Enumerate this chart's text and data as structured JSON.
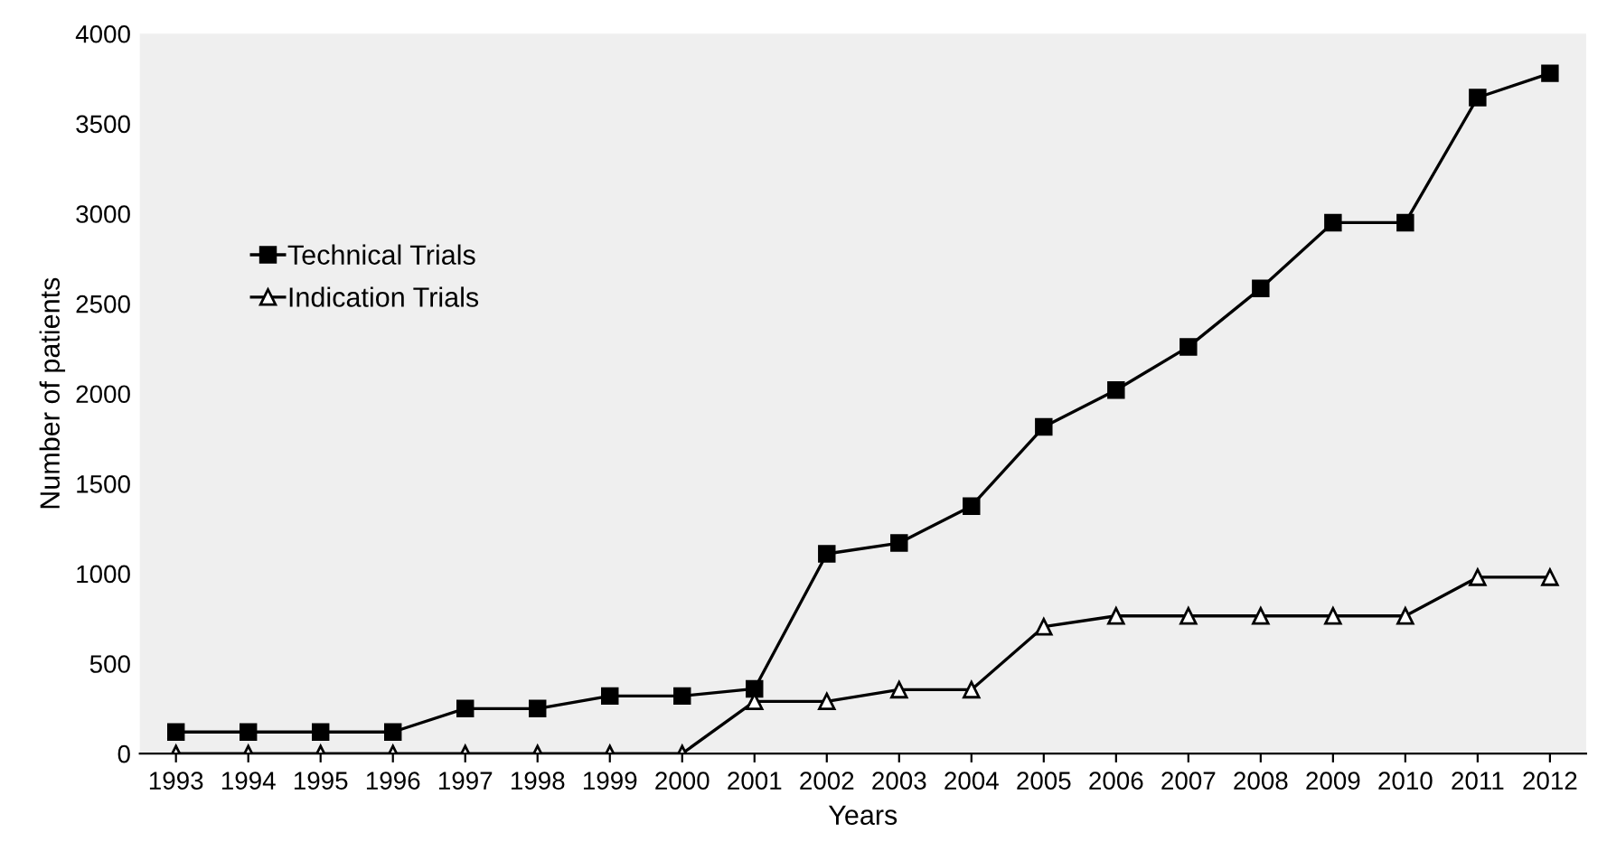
{
  "chart_data": {
    "type": "line",
    "xlabel": "Years",
    "ylabel": "Number of patients",
    "categories": [
      "1993",
      "1994",
      "1995",
      "1996",
      "1997",
      "1998",
      "1999",
      "2000",
      "2001",
      "2002",
      "2003",
      "2004",
      "2005",
      "2006",
      "2007",
      "2008",
      "2009",
      "2010",
      "2011",
      "2012"
    ],
    "series": [
      {
        "name": "Technical Trials",
        "color": "#000000",
        "marker": "square",
        "values": [
          120,
          120,
          120,
          120,
          250,
          250,
          320,
          320,
          360,
          1110,
          1170,
          1375,
          1815,
          2020,
          2260,
          2585,
          2950,
          2950,
          3645,
          3780
        ]
      },
      {
        "name": "Indication Trials",
        "color": "#000000",
        "marker": "triangle",
        "values": [
          0,
          0,
          0,
          0,
          0,
          0,
          0,
          0,
          290,
          290,
          355,
          355,
          705,
          765,
          765,
          765,
          765,
          765,
          980,
          980
        ]
      }
    ],
    "ylim": [
      0,
      4000
    ],
    "yticks": [
      0,
      500,
      1000,
      1500,
      2000,
      2500,
      3000,
      3500,
      4000
    ],
    "grid": false,
    "legend": "left",
    "line_style": "solid"
  }
}
